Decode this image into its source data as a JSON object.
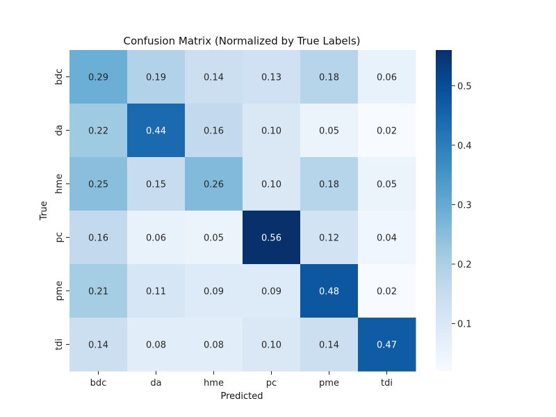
{
  "chart_data": {
    "type": "heatmap",
    "title": "Confusion Matrix (Normalized by True Labels)",
    "xlabel": "Predicted",
    "ylabel": "True",
    "x_categories": [
      "bdc",
      "da",
      "hme",
      "pc",
      "pme",
      "tdi"
    ],
    "y_categories": [
      "bdc",
      "da",
      "hme",
      "pc",
      "pme",
      "tdi"
    ],
    "values": [
      [
        0.29,
        0.19,
        0.14,
        0.13,
        0.18,
        0.06
      ],
      [
        0.22,
        0.44,
        0.16,
        0.1,
        0.05,
        0.02
      ],
      [
        0.25,
        0.15,
        0.26,
        0.1,
        0.18,
        0.05
      ],
      [
        0.16,
        0.06,
        0.05,
        0.56,
        0.12,
        0.04
      ],
      [
        0.21,
        0.11,
        0.09,
        0.09,
        0.48,
        0.02
      ],
      [
        0.14,
        0.08,
        0.08,
        0.1,
        0.14,
        0.47
      ]
    ],
    "value_labels": [
      [
        "0.29",
        "0.19",
        "0.14",
        "0.13",
        "0.18",
        "0.06"
      ],
      [
        "0.22",
        "0.44",
        "0.16",
        "0.10",
        "0.05",
        "0.02"
      ],
      [
        "0.25",
        "0.15",
        "0.26",
        "0.10",
        "0.18",
        "0.05"
      ],
      [
        "0.16",
        "0.06",
        "0.05",
        "0.56",
        "0.12",
        "0.04"
      ],
      [
        "0.21",
        "0.11",
        "0.09",
        "0.09",
        "0.48",
        "0.02"
      ],
      [
        "0.14",
        "0.08",
        "0.08",
        "0.10",
        "0.14",
        "0.47"
      ]
    ],
    "colormap": "Blues",
    "colorbar": {
      "vmin": 0.02,
      "vmax": 0.56,
      "ticks": [
        0.1,
        0.2,
        0.3,
        0.4,
        0.5
      ],
      "tick_labels": [
        "0.1",
        "0.2",
        "0.3",
        "0.4",
        "0.5"
      ]
    }
  }
}
